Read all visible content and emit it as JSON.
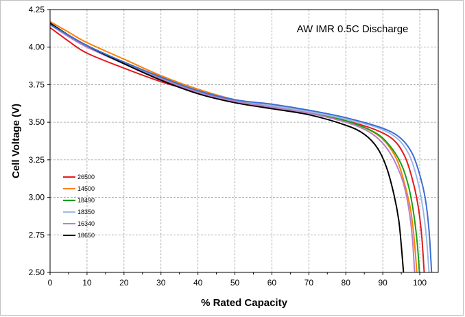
{
  "chart_data": {
    "type": "line",
    "title": "AW IMR 0.5C Discharge",
    "xlabel": "% Rated Capacity",
    "ylabel": "Cell Voltage (V)",
    "xlim": [
      0,
      105
    ],
    "ylim": [
      2.5,
      4.25
    ],
    "xticks": [
      "0",
      "10",
      "20",
      "30",
      "40",
      "50",
      "60",
      "70",
      "80",
      "90",
      "100"
    ],
    "yticks": [
      "2.50",
      "2.75",
      "3.00",
      "3.25",
      "3.50",
      "3.75",
      "4.00",
      "4.25"
    ],
    "grid": true,
    "legend_position": "lower-left",
    "series": [
      {
        "name": "26500",
        "color": "#e41a1c",
        "x": [
          0,
          5,
          10,
          20,
          30,
          40,
          50,
          60,
          70,
          80,
          88,
          93,
          96,
          98,
          99.5,
          100.5,
          101.2
        ],
        "y": [
          4.13,
          4.04,
          3.96,
          3.86,
          3.77,
          3.7,
          3.64,
          3.6,
          3.56,
          3.51,
          3.45,
          3.38,
          3.27,
          3.12,
          2.95,
          2.75,
          2.5
        ]
      },
      {
        "name": "14500",
        "color": "#ff7f00",
        "x": [
          0,
          5,
          10,
          20,
          30,
          40,
          50,
          60,
          70,
          80,
          87,
          91,
          94,
          96,
          97.5,
          98.5,
          99.2
        ],
        "y": [
          4.17,
          4.1,
          4.03,
          3.92,
          3.81,
          3.72,
          3.65,
          3.61,
          3.57,
          3.51,
          3.44,
          3.36,
          3.24,
          3.08,
          2.92,
          2.72,
          2.5
        ]
      },
      {
        "name": "18490",
        "color": "#1a9e1a",
        "x": [
          0,
          5,
          10,
          20,
          30,
          40,
          50,
          60,
          70,
          80,
          88,
          92,
          95,
          97,
          98.3,
          99.3,
          99.9
        ],
        "y": [
          4.16,
          4.08,
          4.01,
          3.9,
          3.8,
          3.71,
          3.65,
          3.61,
          3.57,
          3.51,
          3.43,
          3.34,
          3.22,
          3.07,
          2.9,
          2.7,
          2.5
        ]
      },
      {
        "name": "18350",
        "color": "#9db8e6",
        "x": [
          0,
          5,
          10,
          20,
          30,
          40,
          50,
          60,
          70,
          80,
          89,
          94,
          97,
          99,
          100.5,
          101.7,
          102.5
        ],
        "y": [
          4.15,
          4.07,
          4.0,
          3.89,
          3.79,
          3.71,
          3.65,
          3.61,
          3.57,
          3.52,
          3.46,
          3.39,
          3.29,
          3.15,
          2.98,
          2.76,
          2.5
        ]
      },
      {
        "name": "16340",
        "color": "#b87fc7",
        "x": [
          0,
          5,
          10,
          20,
          30,
          40,
          50,
          60,
          70,
          80,
          86,
          90,
          93,
          95.5,
          97,
          98,
          98.6
        ],
        "y": [
          4.15,
          4.07,
          4.0,
          3.89,
          3.79,
          3.7,
          3.64,
          3.6,
          3.56,
          3.5,
          3.44,
          3.36,
          3.25,
          3.1,
          2.93,
          2.73,
          2.5
        ]
      },
      {
        "name": "18650",
        "color": "#000000",
        "x": [
          0,
          5,
          10,
          20,
          30,
          40,
          50,
          60,
          70,
          80,
          85,
          88.5,
          91,
          93,
          94.3,
          95,
          95.6
        ],
        "y": [
          4.16,
          4.08,
          4.01,
          3.89,
          3.78,
          3.69,
          3.63,
          3.59,
          3.55,
          3.48,
          3.42,
          3.33,
          3.2,
          3.02,
          2.85,
          2.68,
          2.5
        ]
      },
      {
        "name": "",
        "color": "#3a6fd6",
        "x": [
          0,
          5,
          10,
          20,
          30,
          40,
          50,
          60,
          70,
          80,
          90,
          95,
          98,
          100,
          101.5,
          102.5,
          103.2
        ],
        "y": [
          4.15,
          4.08,
          4.01,
          3.9,
          3.8,
          3.71,
          3.65,
          3.62,
          3.58,
          3.53,
          3.46,
          3.39,
          3.29,
          3.15,
          2.99,
          2.78,
          2.5
        ]
      }
    ]
  }
}
